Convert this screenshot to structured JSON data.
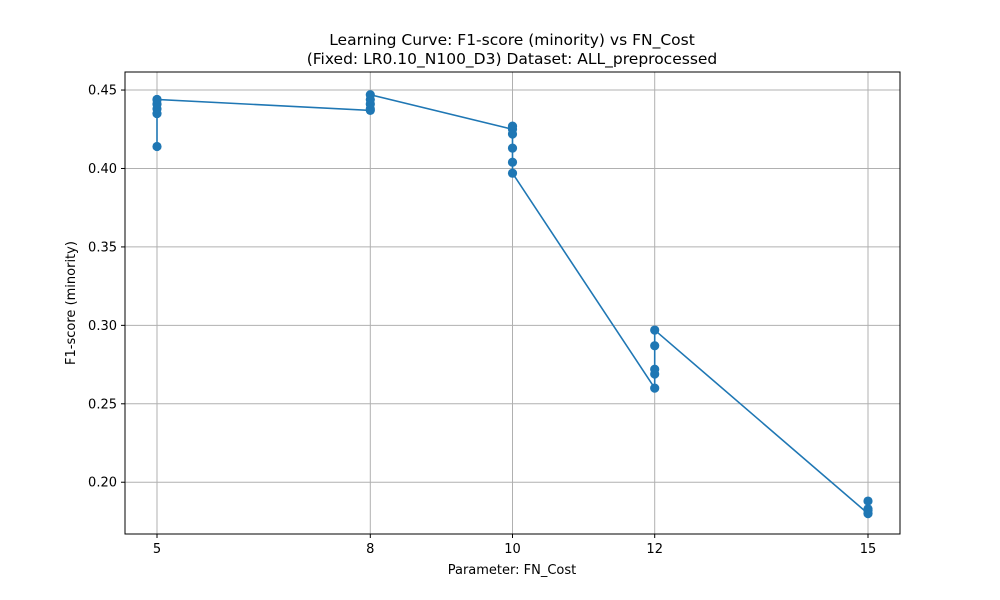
{
  "chart_data": {
    "type": "line",
    "title": "Learning Curve: F1-score (minority) vs FN_Cost",
    "subtitle": "(Fixed: LR0.10_N100_D3) Dataset: ALL_preprocessed",
    "xlabel": "Parameter: FN_Cost",
    "ylabel": "F1-score (minority)",
    "xlim": [
      4.55,
      15.45
    ],
    "ylim": [
      0.167,
      0.4615
    ],
    "xticks": [
      5,
      8,
      10,
      12,
      15
    ],
    "yticks": [
      0.2,
      0.25,
      0.3,
      0.35,
      0.4,
      0.45
    ],
    "ytick_labels": [
      "0.20",
      "0.25",
      "0.30",
      "0.35",
      "0.40",
      "0.45"
    ],
    "grid": true,
    "color": "#1f77b4",
    "points": [
      {
        "x": 5,
        "y": 0.444
      },
      {
        "x": 5,
        "y": 0.414
      },
      {
        "x": 5,
        "y": 0.435
      },
      {
        "x": 5,
        "y": 0.438
      },
      {
        "x": 5,
        "y": 0.441
      },
      {
        "x": 5,
        "y": 0.444
      },
      {
        "x": 8,
        "y": 0.437
      },
      {
        "x": 8,
        "y": 0.438
      },
      {
        "x": 8,
        "y": 0.441
      },
      {
        "x": 8,
        "y": 0.444
      },
      {
        "x": 8,
        "y": 0.447
      },
      {
        "x": 10,
        "y": 0.425
      },
      {
        "x": 10,
        "y": 0.427
      },
      {
        "x": 10,
        "y": 0.422
      },
      {
        "x": 10,
        "y": 0.413
      },
      {
        "x": 10,
        "y": 0.404
      },
      {
        "x": 10,
        "y": 0.397
      },
      {
        "x": 12,
        "y": 0.26
      },
      {
        "x": 12,
        "y": 0.269
      },
      {
        "x": 12,
        "y": 0.272
      },
      {
        "x": 12,
        "y": 0.287
      },
      {
        "x": 12,
        "y": 0.297
      },
      {
        "x": 15,
        "y": 0.18
      },
      {
        "x": 15,
        "y": 0.182
      },
      {
        "x": 15,
        "y": 0.183
      },
      {
        "x": 15,
        "y": 0.188
      }
    ]
  }
}
